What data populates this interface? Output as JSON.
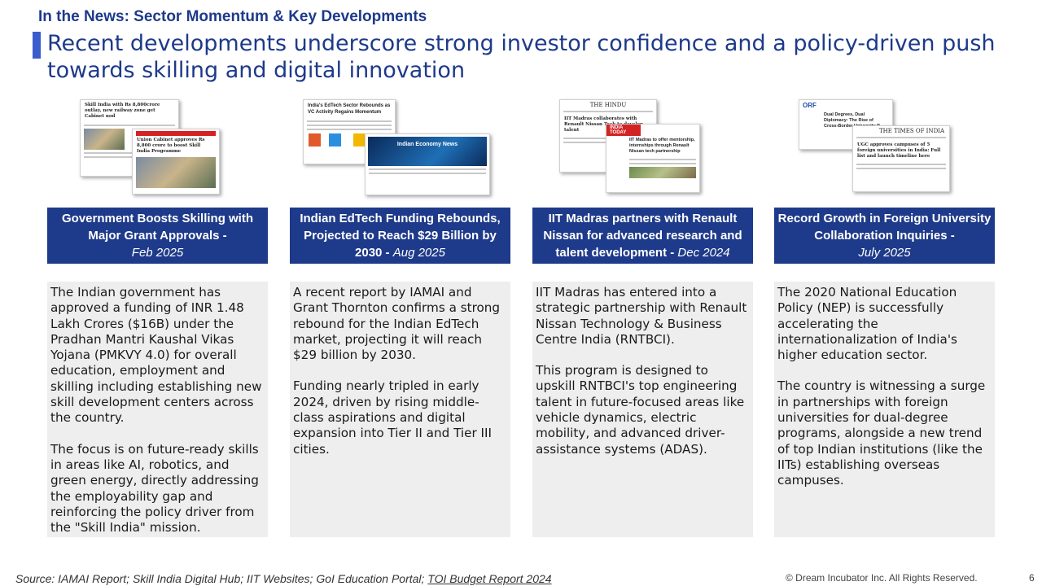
{
  "header": {
    "kicker": "In the News: Sector Momentum & Key Developments",
    "title": "Recent developments underscore strong investor confidence and a policy-driven push towards skilling and digital innovation"
  },
  "columns": [
    {
      "heading": "Government Boosts Skilling with Major Grant Approvals -",
      "date": "Feb 2025",
      "paragraphs": [
        "The Indian government has approved a funding of INR 1.48 Lakh Crores ($16B) under the Pradhan Mantri Kaushal Vikas Yojana (PMKVY 4.0) for overall education, employment and skilling including establishing new skill development centers across the country.",
        "The focus is on future-ready skills in areas like AI, robotics, and green energy, directly addressing the employability gap and reinforcing the policy driver from the \"Skill India\" mission."
      ]
    },
    {
      "heading": "Indian EdTech Funding Rebounds, Projected to Reach $29 Billion by 2030 -",
      "date": "Aug 2025",
      "paragraphs": [
        "A recent report by IAMAI and Grant Thornton confirms a strong rebound for the Indian EdTech market, projecting it will reach $29 billion by 2030.",
        "Funding nearly tripled in early 2024, driven by rising middle-class aspirations and digital expansion into Tier II and Tier III cities."
      ]
    },
    {
      "heading": "IIT Madras partners with Renault Nissan for advanced research and talent development -",
      "date": "Dec 2024",
      "paragraphs": [
        "IIT Madras has entered into a strategic partnership with Renault Nissan Technology & Business Centre India (RNTBCI).",
        "This program is designed to upskill RNTBCI's top engineering talent in future-focused areas like vehicle dynamics, electric mobility, and advanced driver-assistance systems (ADAS)."
      ]
    },
    {
      "heading": "Record Growth in Foreign University Collaboration Inquiries -",
      "date": "July 2025",
      "paragraphs": [
        "The 2020 National Education Policy (NEP) is successfully accelerating the internationalization of India's higher education sector.",
        "The country is witnessing a surge in partnerships with foreign universities for dual-degree programs, alongside a new trend of top Indian institutions (like the IITs) establishing overseas campuses."
      ]
    }
  ],
  "thumbnails": {
    "c1a": "Skill India with Rs 8,800crore outlay, new railway zone get Cabinet nod",
    "c1b": "Union Cabinet approves Rs 8,800 crore to boost Skill India Programme",
    "c2a": "India's EdTech Sector Rebounds as VC Activity Regains Momentum",
    "c2b": "Indian Economy News",
    "c3a": "THE HINDU",
    "c3a_head": "IIT Madras collaborates with Renault Nissan Tech to develop talent",
    "c3b": "INDIA TODAY",
    "c3b_head": "IIT Madras to offer mentorship, internships through Renault Nissan tech partnership",
    "c4a": "ORF",
    "c4a_head": "Dual Degrees, Dual Diplomacy: The Rise of Cross-Border University P...",
    "c4b": "THE TIMES OF INDIA",
    "c4b_head": "UGC approves campuses of 5 foreign universities in India: Full list and launch timeline here"
  },
  "footer": {
    "source_prefix": "Source: IAMAI Report; Skill India Digital Hub; IIT Websites; GoI Education Portal; ",
    "source_link": "TOI Budget Report 2024",
    "copyright": "© Dream Incubator Inc. All Rights Reserved.",
    "page_number": "6"
  }
}
